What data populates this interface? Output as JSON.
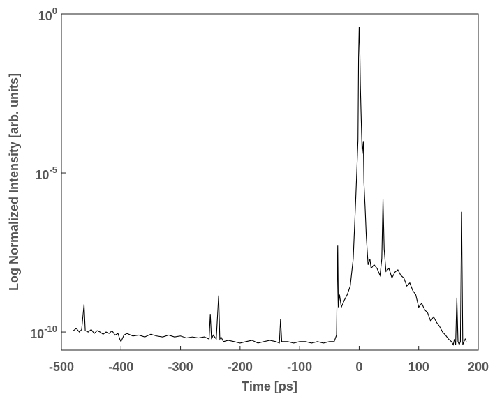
{
  "chart_data": {
    "type": "line",
    "xlabel": "Time [ps]",
    "ylabel": "Log Normalized Intensity [arb. units]",
    "ylog": true,
    "color": "#000000",
    "xlim": [
      -500,
      200
    ],
    "xticks": [
      -500,
      -400,
      -300,
      -200,
      -100,
      0,
      100,
      200
    ],
    "ylim": [
      2.7e-11,
      1
    ],
    "yticks": [
      {
        "value": 1e-10,
        "label": "10^-10"
      },
      {
        "value": 1e-05,
        "label": "10^-5"
      },
      {
        "value": 1,
        "label": "10^0"
      }
    ],
    "x": [
      -480,
      -475,
      -470,
      -466,
      -462,
      -460,
      -455,
      -450,
      -445,
      -440,
      -435,
      -430,
      -425,
      -420,
      -415,
      -410,
      -405,
      -402,
      -400,
      -395,
      -390,
      -380,
      -370,
      -360,
      -350,
      -340,
      -330,
      -320,
      -310,
      -300,
      -290,
      -280,
      -270,
      -260,
      -252,
      -250,
      -248,
      -245,
      -240,
      -236,
      -234,
      -232,
      -228,
      -220,
      -210,
      -200,
      -190,
      -180,
      -170,
      -160,
      -150,
      -140,
      -134,
      -132,
      -130,
      -120,
      -110,
      -100,
      -90,
      -80,
      -70,
      -60,
      -50,
      -42,
      -38,
      -36,
      -35,
      -33,
      -30,
      -25,
      -20,
      -15,
      -10,
      -6,
      -4,
      -2,
      -1,
      0,
      1,
      2,
      3,
      5,
      7,
      8,
      10,
      12,
      15,
      18,
      20,
      25,
      30,
      35,
      38,
      40,
      42,
      45,
      50,
      55,
      60,
      65,
      70,
      75,
      80,
      85,
      90,
      95,
      100,
      105,
      110,
      115,
      120,
      125,
      130,
      135,
      140,
      145,
      150,
      155,
      158,
      160,
      162,
      164,
      166,
      168,
      170,
      172,
      174,
      176,
      178,
      180
    ],
    "values": [
      1.1e-10,
      1.3e-10,
      1e-10,
      1.2e-10,
      7.5e-10,
      1.1e-10,
      1e-10,
      1.2e-10,
      9e-11,
      1.1e-10,
      1e-10,
      8.5e-11,
      1e-10,
      9e-11,
      1.1e-10,
      8e-11,
      9e-11,
      6e-11,
      5e-11,
      8e-11,
      9e-11,
      7.5e-11,
      8e-11,
      7e-11,
      8.5e-11,
      7.5e-11,
      7e-11,
      8e-11,
      7e-11,
      7.5e-11,
      6.5e-11,
      7e-11,
      6.5e-11,
      7e-11,
      6e-11,
      3.7e-10,
      6e-11,
      8e-11,
      6e-11,
      1.4e-09,
      6e-11,
      7e-11,
      5e-11,
      5.5e-11,
      5e-11,
      4.5e-11,
      5e-11,
      5.5e-11,
      4.5e-11,
      5e-11,
      5.5e-11,
      5e-11,
      4.5e-11,
      2.5e-10,
      5e-11,
      5e-11,
      4.5e-11,
      5e-11,
      5e-11,
      4.5e-11,
      5e-11,
      4.5e-11,
      5e-11,
      5e-11,
      8e-11,
      5.2e-08,
      6e-10,
      1.5e-09,
      6e-10,
      1e-09,
      1.5e-09,
      2.8e-09,
      2e-08,
      1.2e-06,
      1.1e-05,
      0.00011,
      0.04,
      0.4,
      0.1,
      0.006,
      0.001,
      4e-05,
      0.0001,
      5e-06,
      8e-07,
      1e-07,
      1.3e-08,
      2e-08,
      1e-08,
      1.3e-08,
      1e-08,
      6e-09,
      2e-08,
      1.5e-06,
      4e-08,
      8e-09,
      1e-08,
      5e-09,
      7.6e-09,
      9e-09,
      6e-09,
      5e-09,
      2.8e-09,
      3.5e-09,
      2e-09,
      1.5e-09,
      6e-10,
      8e-10,
      5e-10,
      4e-10,
      2.2e-10,
      3e-10,
      2e-10,
      1.5e-10,
      1e-10,
      8e-11,
      6e-11,
      5e-11,
      4e-11,
      6e-11,
      4e-11,
      1.2e-09,
      5e-11,
      4e-11,
      5e-11,
      6e-07,
      4e-11,
      5e-11,
      6e-11,
      5e-11
    ]
  }
}
